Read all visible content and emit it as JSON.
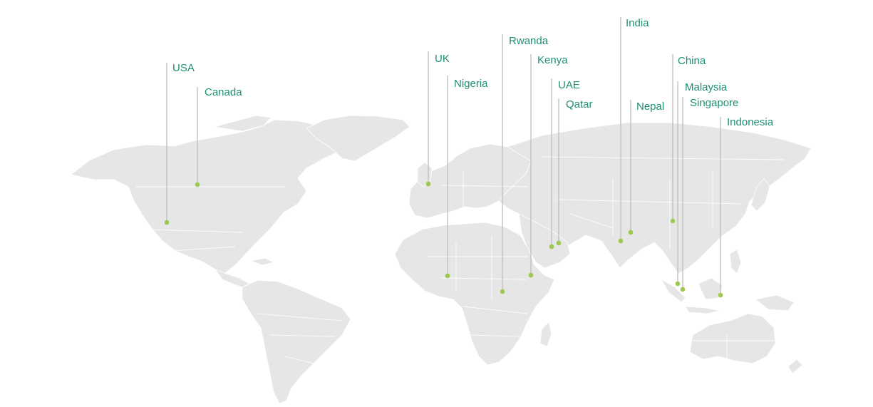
{
  "map": {
    "land_color": "#e6e6e6",
    "line_color": "#bdbdbd",
    "dot_color": "#9cc94f",
    "label_color": "#1e8f72",
    "locations": [
      {
        "id": "usa",
        "label": "USA"
      },
      {
        "id": "canada",
        "label": "Canada"
      },
      {
        "id": "uk",
        "label": "UK"
      },
      {
        "id": "nigeria",
        "label": "Nigeria"
      },
      {
        "id": "rwanda",
        "label": "Rwanda"
      },
      {
        "id": "kenya",
        "label": "Kenya"
      },
      {
        "id": "uae",
        "label": "UAE"
      },
      {
        "id": "qatar",
        "label": "Qatar"
      },
      {
        "id": "india",
        "label": "India"
      },
      {
        "id": "nepal",
        "label": "Nepal"
      },
      {
        "id": "china",
        "label": "China"
      },
      {
        "id": "malaysia",
        "label": "Malaysia"
      },
      {
        "id": "singapore",
        "label": "Singapore"
      },
      {
        "id": "indonesia",
        "label": "Indonesia"
      }
    ]
  }
}
